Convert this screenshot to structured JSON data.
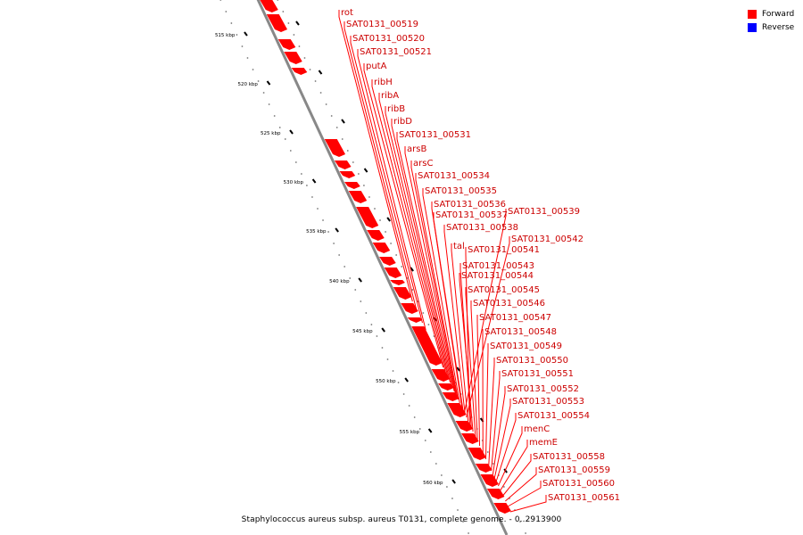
{
  "legend": [
    {
      "label": "Forward",
      "color": "#ff0000"
    },
    {
      "label": "Reverse",
      "color": "#0000ff"
    }
  ],
  "caption": "Staphylococcus aureus subsp. aureus T0131, complete genome. - 0..2913900",
  "ticks": [
    "515 kbp",
    "520 kbp",
    "525 kbp",
    "530 kbp",
    "535 kbp",
    "540 kbp",
    "545 kbp",
    "550 kbp",
    "555 kbp",
    "560 kbp"
  ],
  "genes": [
    "rot",
    "SAT0131_00519",
    "SAT0131_00520",
    "SAT0131_00521",
    "putA",
    "ribH",
    "ribA",
    "ribB",
    "ribD",
    "SAT0131_00531",
    "arsB",
    "arsC",
    "SAT0131_00534",
    "SAT0131_00535",
    "SAT0131_00536",
    "SAT0131_00537",
    "SAT0131_00539",
    "SAT0131_00538",
    "SAT0131_00542",
    "tal",
    "SAT0131_00541",
    "SAT0131_00543",
    "SAT0131_00544",
    "SAT0131_00545",
    "SAT0131_00546",
    "SAT0131_00547",
    "SAT0131_00548",
    "SAT0131_00549",
    "SAT0131_00550",
    "SAT0131_00551",
    "SAT0131_00552",
    "SAT0131_00553",
    "SAT0131_00554",
    "menC",
    "memE",
    "SAT0131_00558",
    "SAT0131_00559",
    "SAT0131_00560",
    "SAT0131_00561"
  ],
  "colors": {
    "forward": "#ff0000",
    "backbone": "#888888",
    "label": "#cc0000"
  }
}
